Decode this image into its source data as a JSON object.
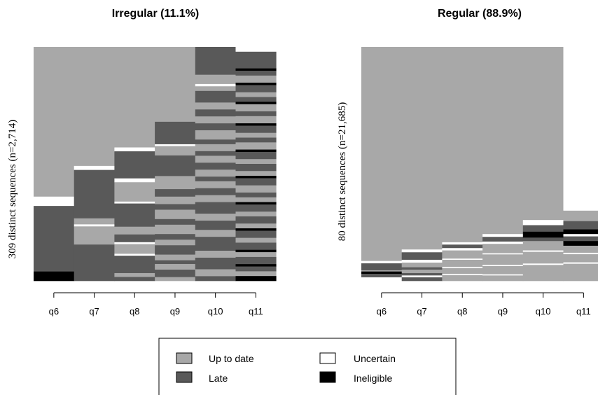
{
  "colors": {
    "up_to_date": "#a8a8a8",
    "late": "#595959",
    "uncertain": "#ffffff",
    "ineligible": "#000000"
  },
  "legend": {
    "items": [
      {
        "key": "up_to_date",
        "label": "Up to date"
      },
      {
        "key": "uncertain",
        "label": "Uncertain"
      },
      {
        "key": "late",
        "label": "Late"
      },
      {
        "key": "ineligible",
        "label": "Ineligible"
      }
    ]
  },
  "chart_data": [
    {
      "type": "sequence-index",
      "title": "Irregular (11.1%)",
      "ylabel": "309 distinct sequences (n=2,714)",
      "xlabel": "",
      "categories": [
        "q6",
        "q7",
        "q8",
        "q9",
        "q10",
        "q11"
      ],
      "ylim": [
        0,
        1
      ],
      "columns": [
        [
          [
            "up_to_date",
            0.64
          ],
          [
            "uncertain",
            0.04
          ],
          [
            "late",
            0.28
          ],
          [
            "ineligible",
            0.04
          ]
        ],
        [
          [
            "up_to_date",
            0.59
          ],
          [
            "uncertain",
            0.02
          ],
          [
            "late",
            0.24
          ],
          [
            "up_to_date",
            0.03
          ],
          [
            "uncertain",
            0.01
          ],
          [
            "up_to_date",
            0.09
          ],
          [
            "late",
            0.15
          ],
          [
            "late",
            0.03
          ]
        ],
        [
          [
            "up_to_date",
            0.52
          ],
          [
            "uncertain",
            0.02
          ],
          [
            "late",
            0.14
          ],
          [
            "uncertain",
            0.02
          ],
          [
            "up_to_date",
            0.1
          ],
          [
            "uncertain",
            0.01
          ],
          [
            "late",
            0.12
          ],
          [
            "up_to_date",
            0.04
          ],
          [
            "late",
            0.04
          ],
          [
            "uncertain",
            0.01
          ],
          [
            "up_to_date",
            0.05
          ],
          [
            "uncertain",
            0.01
          ],
          [
            "late",
            0.09
          ],
          [
            "up_to_date",
            0.02
          ],
          [
            "late",
            0.02
          ]
        ],
        [
          [
            "up_to_date",
            0.4
          ],
          [
            "late",
            0.12
          ],
          [
            "uncertain",
            0.01
          ],
          [
            "up_to_date",
            0.05
          ],
          [
            "late",
            0.11
          ],
          [
            "up_to_date",
            0.07
          ],
          [
            "late",
            0.04
          ],
          [
            "up_to_date",
            0.04
          ],
          [
            "late",
            0.03
          ],
          [
            "up_to_date",
            0.05
          ],
          [
            "late",
            0.03
          ],
          [
            "up_to_date",
            0.05
          ],
          [
            "late",
            0.03
          ],
          [
            "up_to_date",
            0.03
          ],
          [
            "late",
            0.05
          ],
          [
            "up_to_date",
            0.03
          ],
          [
            "late",
            0.02
          ],
          [
            "up_to_date",
            0.03
          ],
          [
            "late",
            0.04
          ],
          [
            "up_to_date",
            0.02
          ]
        ],
        [
          [
            "late",
            0.12
          ],
          [
            "up_to_date",
            0.04
          ],
          [
            "uncertain",
            0.01
          ],
          [
            "up_to_date",
            0.02
          ],
          [
            "late",
            0.05
          ],
          [
            "up_to_date",
            0.03
          ],
          [
            "late",
            0.03
          ],
          [
            "up_to_date",
            0.03
          ],
          [
            "late",
            0.03
          ],
          [
            "up_to_date",
            0.04
          ],
          [
            "late",
            0.02
          ],
          [
            "up_to_date",
            0.03
          ],
          [
            "late",
            0.02
          ],
          [
            "up_to_date",
            0.03
          ],
          [
            "late",
            0.03
          ],
          [
            "up_to_date",
            0.03
          ],
          [
            "late",
            0.02
          ],
          [
            "up_to_date",
            0.03
          ],
          [
            "late",
            0.03
          ],
          [
            "up_to_date",
            0.03
          ],
          [
            "late",
            0.05
          ],
          [
            "up_to_date",
            0.03
          ],
          [
            "late",
            0.04
          ],
          [
            "up_to_date",
            0.03
          ],
          [
            "late",
            0.06
          ],
          [
            "up_to_date",
            0.03
          ],
          [
            "late",
            0.05
          ],
          [
            "up_to_date",
            0.03
          ],
          [
            "late",
            0.02
          ]
        ],
        [
          [
            "uncertain",
            0.02
          ],
          [
            "late",
            0.07
          ],
          [
            "ineligible",
            0.01
          ],
          [
            "late",
            0.02
          ],
          [
            "up_to_date",
            0.03
          ],
          [
            "ineligible",
            0.01
          ],
          [
            "late",
            0.03
          ],
          [
            "up_to_date",
            0.02
          ],
          [
            "late",
            0.02
          ],
          [
            "ineligible",
            0.01
          ],
          [
            "up_to_date",
            0.03
          ],
          [
            "late",
            0.02
          ],
          [
            "up_to_date",
            0.03
          ],
          [
            "ineligible",
            0.01
          ],
          [
            "late",
            0.03
          ],
          [
            "up_to_date",
            0.02
          ],
          [
            "late",
            0.02
          ],
          [
            "up_to_date",
            0.03
          ],
          [
            "ineligible",
            0.01
          ],
          [
            "late",
            0.03
          ],
          [
            "up_to_date",
            0.02
          ],
          [
            "late",
            0.03
          ],
          [
            "up_to_date",
            0.02
          ],
          [
            "ineligible",
            0.01
          ],
          [
            "late",
            0.03
          ],
          [
            "up_to_date",
            0.03
          ],
          [
            "late",
            0.02
          ],
          [
            "up_to_date",
            0.02
          ],
          [
            "ineligible",
            0.01
          ],
          [
            "late",
            0.03
          ],
          [
            "up_to_date",
            0.02
          ],
          [
            "late",
            0.03
          ],
          [
            "up_to_date",
            0.02
          ],
          [
            "ineligible",
            0.01
          ],
          [
            "late",
            0.03
          ],
          [
            "up_to_date",
            0.02
          ],
          [
            "late",
            0.03
          ],
          [
            "ineligible",
            0.01
          ],
          [
            "up_to_date",
            0.02
          ],
          [
            "late",
            0.03
          ],
          [
            "ineligible",
            0.01
          ],
          [
            "late",
            0.02
          ],
          [
            "up_to_date",
            0.02
          ],
          [
            "ineligible",
            0.02
          ]
        ]
      ]
    },
    {
      "type": "sequence-index",
      "title": "Regular (88.9%)",
      "ylabel": "80 distinct sequences (n=21,685)",
      "xlabel": "",
      "categories": [
        "q6",
        "q7",
        "q8",
        "q9",
        "q10",
        "q11"
      ],
      "ylim": [
        0,
        1
      ],
      "columns": [
        [
          [
            "up_to_date",
            0.915
          ],
          [
            "uncertain",
            0.01
          ],
          [
            "late",
            0.03
          ],
          [
            "up_to_date",
            0.005
          ],
          [
            "ineligible",
            0.01
          ],
          [
            "late",
            0.015
          ],
          [
            "uncertain",
            0.015
          ]
        ],
        [
          [
            "up_to_date",
            0.866
          ],
          [
            "uncertain",
            0.012
          ],
          [
            "late",
            0.032
          ],
          [
            "uncertain",
            0.012
          ],
          [
            "up_to_date",
            0.02
          ],
          [
            "late",
            0.01
          ],
          [
            "up_to_date",
            0.015
          ],
          [
            "late",
            0.01
          ],
          [
            "uncertain",
            0.008
          ],
          [
            "late",
            0.015
          ]
        ],
        [
          [
            "up_to_date",
            0.835
          ],
          [
            "uncertain",
            0.01
          ],
          [
            "late",
            0.015
          ],
          [
            "uncertain",
            0.01
          ],
          [
            "up_to_date",
            0.035
          ],
          [
            "uncertain",
            0.005
          ],
          [
            "up_to_date",
            0.03
          ],
          [
            "uncertain",
            0.005
          ],
          [
            "up_to_date",
            0.025
          ],
          [
            "uncertain",
            0.005
          ],
          [
            "up_to_date",
            0.025
          ]
        ],
        [
          [
            "up_to_date",
            0.8
          ],
          [
            "uncertain",
            0.012
          ],
          [
            "late",
            0.02
          ],
          [
            "uncertain",
            0.01
          ],
          [
            "up_to_date",
            0.04
          ],
          [
            "uncertain",
            0.005
          ],
          [
            "up_to_date",
            0.045
          ],
          [
            "uncertain",
            0.005
          ],
          [
            "up_to_date",
            0.035
          ],
          [
            "uncertain",
            0.005
          ],
          [
            "up_to_date",
            0.023
          ]
        ],
        [
          [
            "up_to_date",
            0.74
          ],
          [
            "uncertain",
            0.022
          ],
          [
            "late",
            0.028
          ],
          [
            "ineligible",
            0.025
          ],
          [
            "late",
            0.015
          ],
          [
            "up_to_date",
            0.04
          ],
          [
            "uncertain",
            0.006
          ],
          [
            "up_to_date",
            0.05
          ],
          [
            "uncertain",
            0.006
          ],
          [
            "up_to_date",
            0.068
          ]
        ],
        [
          [
            "uncertain",
            0.7
          ],
          [
            "up_to_date",
            0.045
          ],
          [
            "late",
            0.035
          ],
          [
            "ineligible",
            0.02
          ],
          [
            "uncertain",
            0.01
          ],
          [
            "late",
            0.02
          ],
          [
            "ineligible",
            0.02
          ],
          [
            "up_to_date",
            0.03
          ],
          [
            "uncertain",
            0.006
          ],
          [
            "up_to_date",
            0.035
          ],
          [
            "uncertain",
            0.006
          ],
          [
            "up_to_date",
            0.073
          ]
        ]
      ]
    }
  ]
}
